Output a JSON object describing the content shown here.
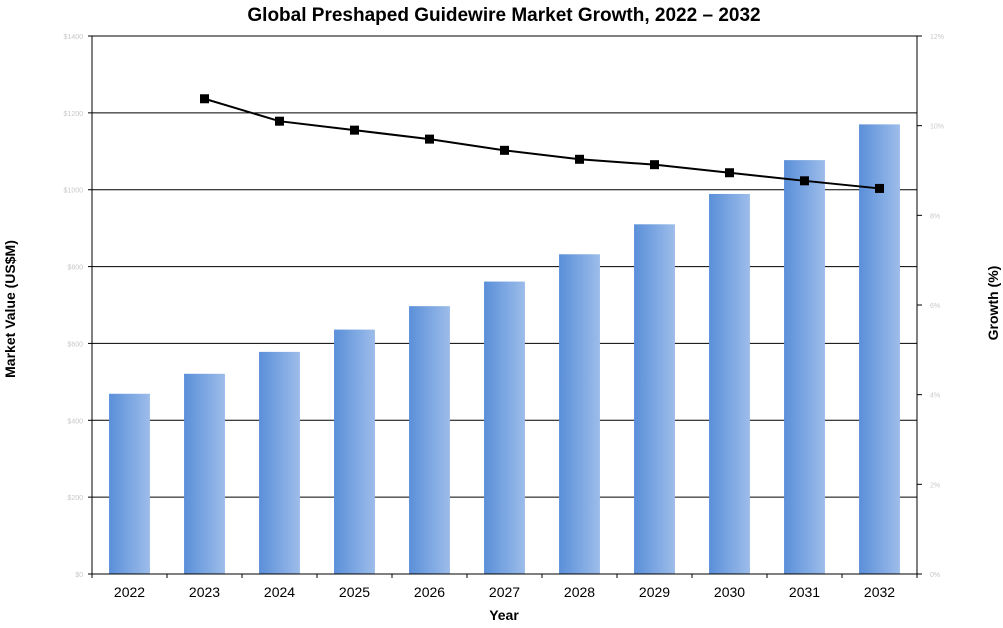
{
  "chart_data": {
    "type": "bar",
    "title": "Global Preshaped Guidewire Market Growth, 2022 – 2032",
    "xlabel": "Year",
    "ylabel": "Market Value (US$M)",
    "y2label": "Growth (%)",
    "categories": [
      "2022",
      "2023",
      "2024",
      "2025",
      "2026",
      "2027",
      "2028",
      "2029",
      "2030",
      "2031",
      "2032"
    ],
    "ylim": [
      0,
      1400
    ],
    "y2lim": [
      0,
      12
    ],
    "y_ticks": [
      "$0",
      "$200",
      "$400",
      "$600",
      "$800",
      "$1000",
      "$1200",
      "$1400"
    ],
    "y2_ticks": [
      "0%",
      "2%",
      "4%",
      "6%",
      "8%",
      "10%",
      "12%"
    ],
    "grid": true,
    "series": [
      {
        "type": "bar",
        "axis": "left",
        "color": "#6f9fe0",
        "values": [
          469,
          521,
          578,
          636,
          697,
          761,
          832,
          910,
          989,
          1077,
          1170
        ]
      },
      {
        "type": "line",
        "axis": "right",
        "color": "#000000",
        "values": [
          null,
          10.6,
          10.1,
          9.9,
          9.7,
          9.45,
          9.25,
          9.13,
          8.95,
          8.77,
          8.6
        ]
      }
    ]
  }
}
